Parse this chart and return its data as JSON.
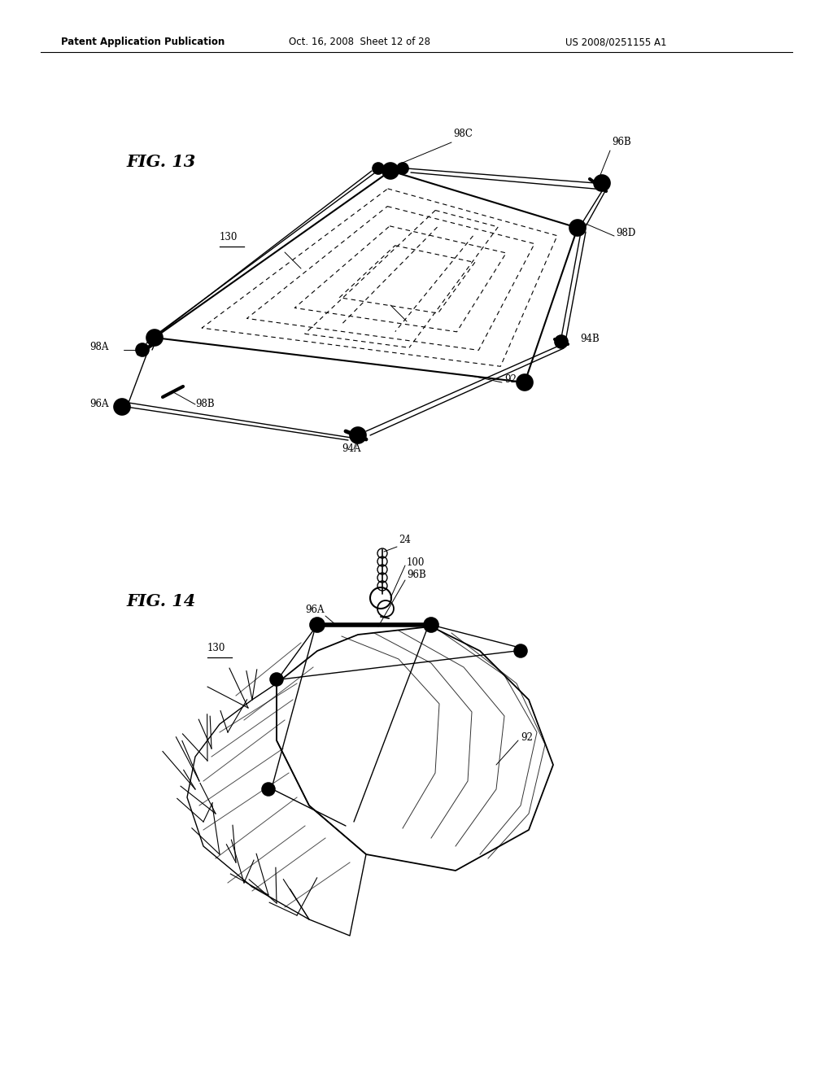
{
  "bg_color": "#ffffff",
  "line_color": "#000000",
  "fig_width": 10.24,
  "fig_height": 13.2,
  "dpi": 100,
  "header_text": "Patent Application Publication",
  "header_date": "Oct. 16, 2008  Sheet 12 of 28",
  "header_patent": "US 2008/0251155 A1",
  "fig13_label": "FIG. 13",
  "fig14_label": "FIG. 14"
}
